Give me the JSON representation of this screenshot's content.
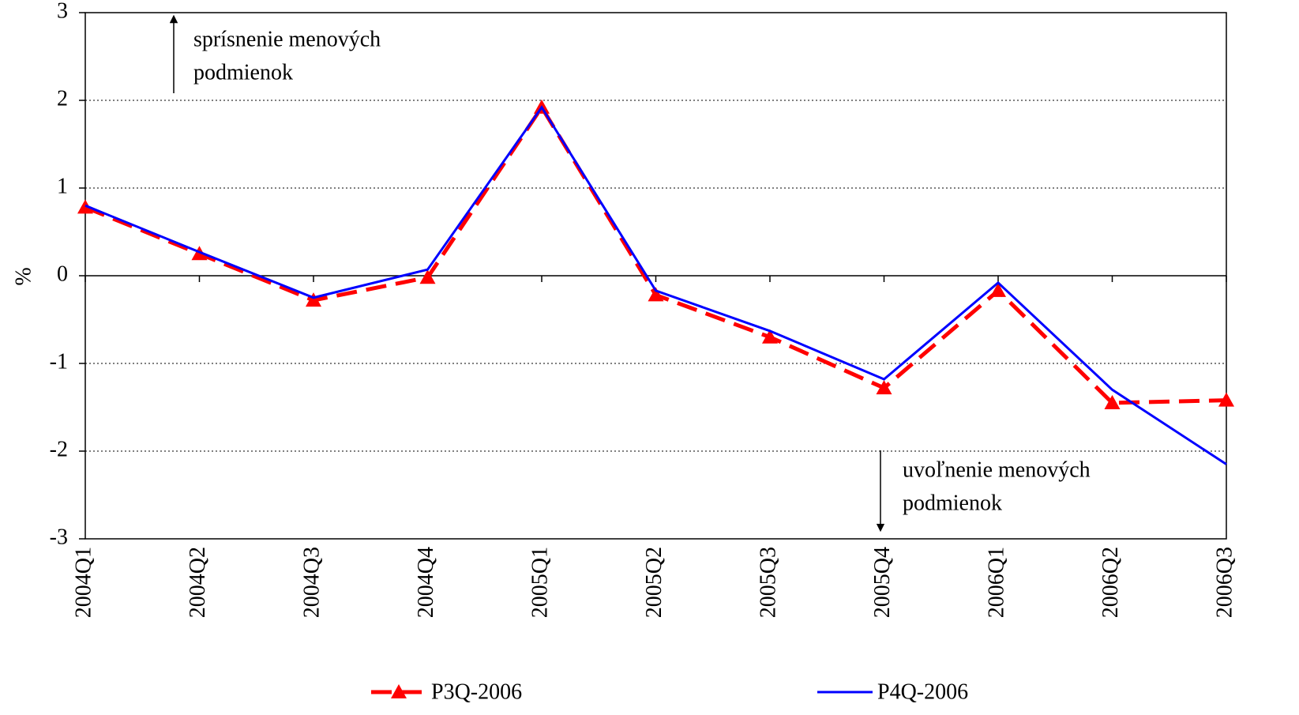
{
  "chart_data": {
    "type": "line",
    "y_label": "%",
    "categories": [
      "2004Q1",
      "2004Q2",
      "2004Q3",
      "2004Q4",
      "2005Q1",
      "2005Q2",
      "2005Q3",
      "2005Q4",
      "2006Q1",
      "2006Q2",
      "2006Q3"
    ],
    "series": [
      {
        "name": "P3Q-2006",
        "color": "#ff0000",
        "dash": true,
        "marker": "triangle",
        "values": [
          0.78,
          0.25,
          -0.28,
          -0.02,
          1.92,
          -0.22,
          -0.7,
          -1.28,
          -0.17,
          -1.45,
          -1.42
        ]
      },
      {
        "name": "P4Q-2006",
        "color": "#0000ff",
        "dash": false,
        "marker": null,
        "values": [
          0.8,
          0.27,
          -0.25,
          0.07,
          1.92,
          -0.17,
          -0.63,
          -1.18,
          -0.08,
          -1.3,
          -2.15
        ]
      }
    ],
    "ylim": [
      -3,
      3
    ],
    "yticks": [
      -3,
      -2,
      -1,
      0,
      1,
      2,
      3
    ],
    "grid": true,
    "annotations": [
      {
        "lines": [
          "sprísnenie menových",
          "podmienok"
        ],
        "direction": "up"
      },
      {
        "lines": [
          "uvoľnenie menových",
          "podmienok"
        ],
        "direction": "down"
      }
    ]
  }
}
